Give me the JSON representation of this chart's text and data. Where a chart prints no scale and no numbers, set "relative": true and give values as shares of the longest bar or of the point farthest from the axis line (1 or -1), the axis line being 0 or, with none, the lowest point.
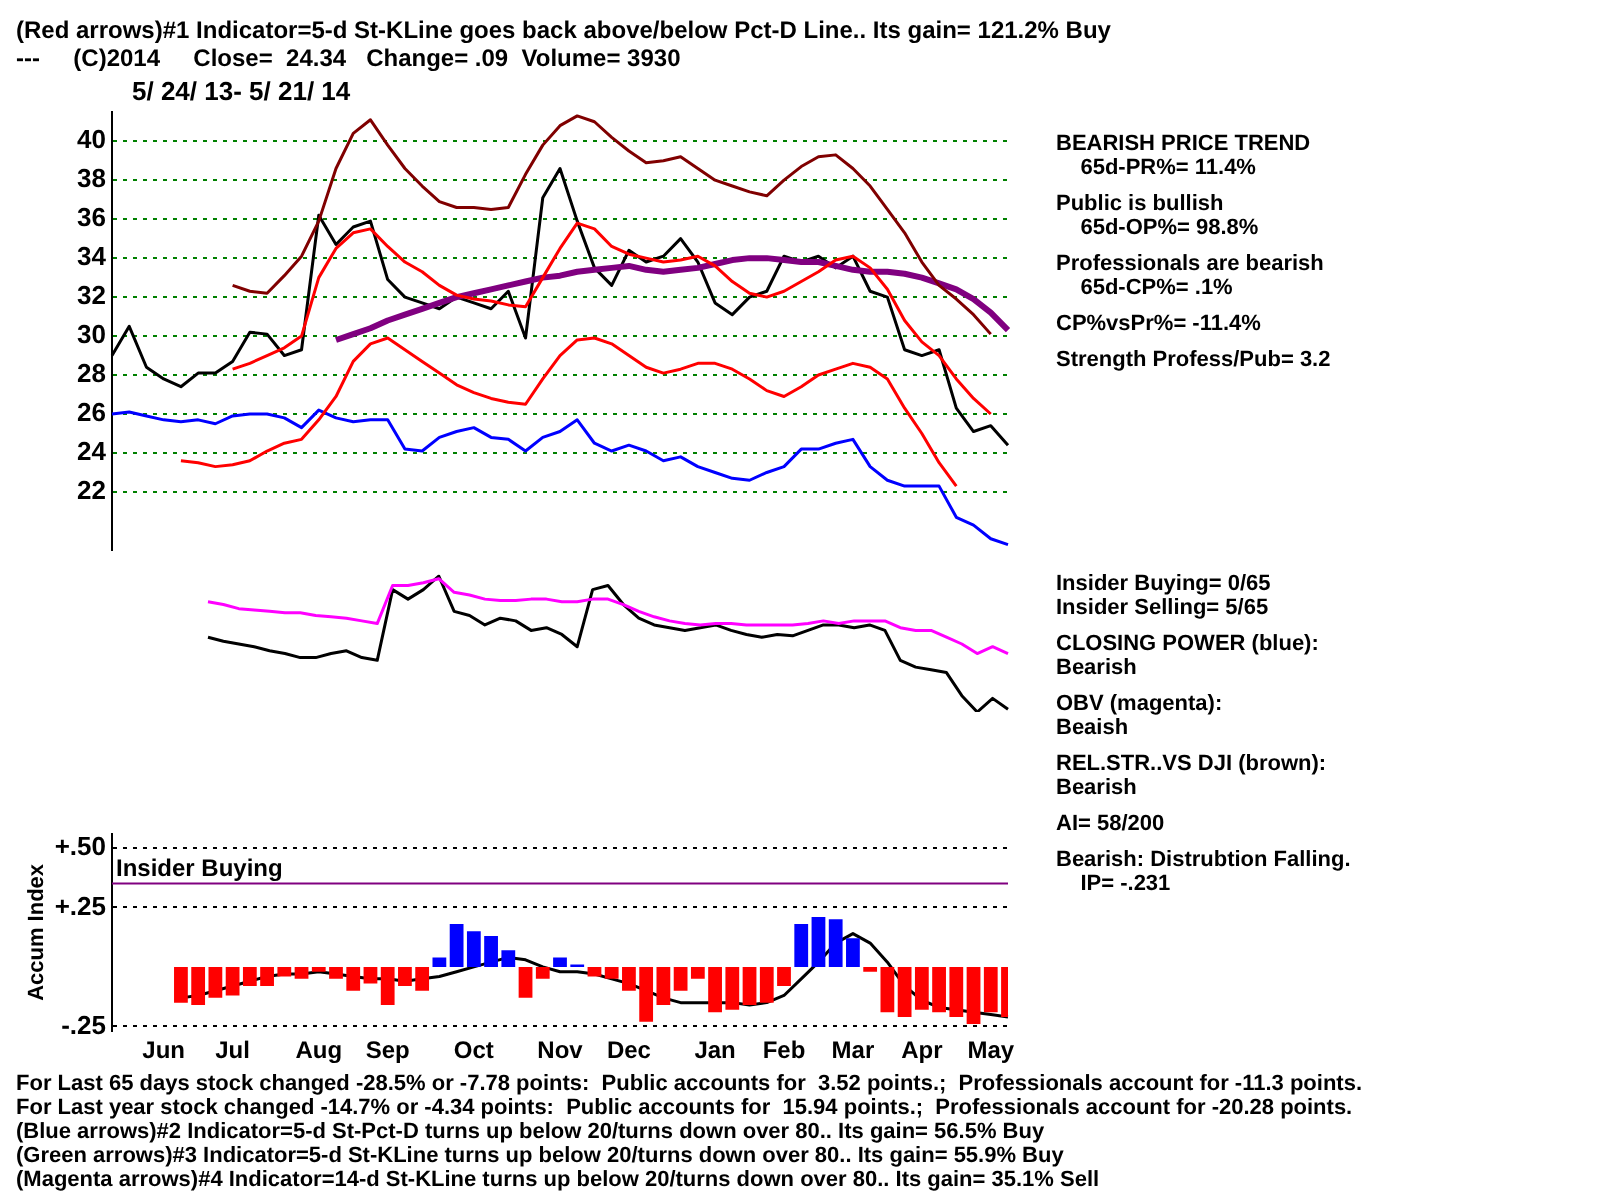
{
  "chart_data": [
    {
      "type": "line",
      "title": "(Red arrows)#1 Indicator=5-d St-KLine goes back above/below Pct-D Line.. Its gain= 121.2% Buy",
      "subtitle": "---     (C)2014     Close=  24.34   Change= .09  Volume= 3930",
      "categories": [
        null,
        null,
        null,
        null,
        null,
        null,
        null,
        null,
        null,
        null,
        null,
        null,
        null,
        null,
        null,
        null,
        null,
        null,
        null,
        null,
        null,
        null,
        null,
        null,
        null,
        null,
        null,
        null,
        null,
        null,
        null,
        null,
        null,
        null,
        null,
        null,
        null,
        null,
        null,
        null,
        null,
        null,
        null,
        null,
        null,
        null,
        null,
        null,
        null,
        null,
        null,
        null,
        null
      ],
      "series": [
        {
          "color": "#800000",
          "values": [
            null,
            null,
            null,
            null,
            null,
            null,
            null,
            32.6,
            32.3,
            32.2,
            33.1,
            34.1,
            35.9,
            38.6,
            40.4,
            41.1,
            39.8,
            38.6,
            37.7,
            36.9,
            36.6,
            36.6,
            36.5,
            36.6,
            38.3,
            39.8,
            40.8,
            41.3,
            41.0,
            40.2,
            39.5,
            38.9,
            39.0,
            39.2,
            38.6,
            38.0,
            37.7,
            37.4,
            37.2,
            38.0,
            38.7,
            39.2,
            39.3,
            38.6,
            37.7,
            36.5,
            35.3,
            33.8,
            32.6,
            31.9,
            31.1,
            30.1,
            null
          ]
        },
        {
          "color": "#ff0000",
          "values": [
            null,
            null,
            null,
            null,
            null,
            null,
            null,
            28.3,
            28.6,
            29.0,
            29.4,
            30.0,
            33.0,
            34.5,
            35.3,
            35.5,
            34.6,
            33.8,
            33.3,
            32.6,
            32.1,
            31.9,
            31.8,
            31.6,
            31.5,
            33.0,
            34.5,
            35.8,
            35.5,
            34.6,
            34.2,
            34.0,
            33.8,
            33.9,
            34.1,
            33.6,
            32.8,
            32.2,
            32.0,
            32.3,
            32.8,
            33.3,
            33.9,
            34.1,
            33.5,
            32.4,
            30.8,
            29.7,
            29.0,
            27.8,
            26.8,
            26.0,
            null
          ]
        },
        {
          "color": "#ff0000",
          "values": [
            null,
            null,
            null,
            null,
            23.6,
            23.5,
            23.3,
            23.4,
            23.6,
            24.1,
            24.5,
            24.7,
            25.7,
            26.9,
            28.7,
            29.6,
            29.9,
            29.3,
            28.7,
            28.1,
            27.5,
            27.1,
            26.8,
            26.6,
            26.5,
            27.8,
            29.0,
            29.8,
            29.9,
            29.6,
            29.0,
            28.4,
            28.1,
            28.3,
            28.6,
            28.6,
            28.3,
            27.8,
            27.2,
            26.9,
            27.4,
            28.0,
            28.3,
            28.6,
            28.4,
            27.8,
            26.3,
            25.0,
            23.5,
            22.3,
            null,
            null,
            null
          ]
        },
        {
          "color": "#800080",
          "values": [
            null,
            null,
            null,
            null,
            null,
            null,
            null,
            null,
            null,
            null,
            null,
            null,
            null,
            29.8,
            30.1,
            30.4,
            30.8,
            31.1,
            31.4,
            31.7,
            32.0,
            32.2,
            32.4,
            32.6,
            32.8,
            33.0,
            33.1,
            33.3,
            33.4,
            33.5,
            33.6,
            33.4,
            33.3,
            33.4,
            33.5,
            33.7,
            33.9,
            34.0,
            34.0,
            33.9,
            33.8,
            33.8,
            33.6,
            33.4,
            33.3,
            33.3,
            33.2,
            33.0,
            32.7,
            32.4,
            31.9,
            31.2,
            30.3
          ]
        },
        {
          "color": "#0000ff",
          "values": [
            26.0,
            26.1,
            25.9,
            25.7,
            25.6,
            25.7,
            25.5,
            25.9,
            26.0,
            26.0,
            25.8,
            25.3,
            26.2,
            25.8,
            25.6,
            25.7,
            25.7,
            24.2,
            24.1,
            24.8,
            25.1,
            25.3,
            24.8,
            24.7,
            24.1,
            24.8,
            25.1,
            25.7,
            24.5,
            24.1,
            24.4,
            24.1,
            23.6,
            23.8,
            23.3,
            23.0,
            22.7,
            22.6,
            23.0,
            23.3,
            24.2,
            24.2,
            24.5,
            24.7,
            23.3,
            22.6,
            22.3,
            22.3,
            22.3,
            20.7,
            20.3,
            19.6,
            19.3
          ]
        },
        {
          "color": "#000000",
          "values": [
            29.0,
            30.5,
            28.4,
            27.8,
            27.4,
            28.1,
            28.1,
            28.7,
            30.2,
            30.1,
            29.0,
            29.3,
            36.2,
            34.7,
            35.6,
            35.9,
            32.9,
            32.0,
            31.7,
            31.4,
            32.0,
            31.7,
            31.4,
            32.3,
            29.9,
            37.1,
            38.6,
            35.9,
            33.5,
            32.6,
            34.4,
            33.8,
            34.1,
            35.0,
            33.8,
            31.7,
            31.1,
            32.0,
            32.3,
            34.1,
            33.8,
            34.1,
            33.5,
            34.1,
            32.3,
            32.0,
            29.3,
            29.0,
            29.3,
            26.3,
            25.1,
            25.4,
            24.4
          ]
        }
      ],
      "ylim": [
        19,
        41.5
      ],
      "yticks": [
        22,
        24,
        26,
        28,
        30,
        32,
        34,
        36,
        38,
        40
      ],
      "grid": "y",
      "legend": false,
      "tick_labels": "y",
      "annotations": [
        "5/ 24/ 13- 5/ 21/ 14",
        "BEARISH PRICE TREND\n    65d-PR%= 11.4%",
        "Public is bullish\n    65d-OP%= 98.8%",
        "Professionals are bearish\n    65d-CP%= .1%",
        "CP%vsPr%= -11.4%",
        "Strength Profess/Pub= 3.2"
      ]
    },
    {
      "type": "line",
      "relative": true,
      "categories": [
        null,
        null,
        null,
        null,
        null,
        null,
        null,
        null,
        null,
        null,
        null,
        null,
        null,
        null,
        null,
        null,
        null,
        null,
        null,
        null,
        null,
        null,
        null,
        null,
        null,
        null,
        null,
        null,
        null,
        null,
        null,
        null,
        null,
        null,
        null,
        null,
        null,
        null,
        null,
        null,
        null,
        null,
        null,
        null,
        null,
        null,
        null,
        null,
        null,
        null,
        null,
        null,
        null
      ],
      "series": [
        {
          "color": "#ff00ff",
          "values": [
            0.81,
            0.79,
            0.76,
            0.75,
            0.74,
            0.73,
            0.73,
            0.71,
            0.7,
            0.69,
            0.67,
            0.65,
            0.93,
            0.93,
            0.95,
            0.98,
            0.88,
            0.86,
            0.83,
            0.82,
            0.82,
            0.83,
            0.83,
            0.81,
            0.81,
            0.83,
            0.83,
            0.79,
            0.74,
            0.7,
            0.67,
            0.65,
            0.64,
            0.65,
            0.65,
            0.64,
            0.64,
            0.64,
            0.64,
            0.65,
            0.67,
            0.65,
            0.67,
            0.67,
            0.67,
            0.62,
            0.6,
            0.6,
            0.55,
            0.5,
            0.43,
            0.48,
            0.43
          ]
        },
        {
          "color": "#000000",
          "values": [
            0.55,
            0.52,
            0.5,
            0.48,
            0.45,
            0.43,
            0.4,
            0.4,
            0.43,
            0.45,
            0.4,
            0.38,
            0.9,
            0.83,
            0.9,
            1.0,
            0.74,
            0.71,
            0.64,
            0.69,
            0.67,
            0.6,
            0.62,
            0.57,
            0.48,
            0.9,
            0.93,
            0.79,
            0.69,
            0.64,
            0.62,
            0.6,
            0.62,
            0.64,
            0.6,
            0.57,
            0.55,
            0.57,
            0.56,
            0.6,
            0.64,
            0.64,
            0.62,
            0.64,
            0.6,
            0.38,
            0.33,
            0.31,
            0.29,
            0.12,
            0,
            0.1,
            0.02
          ]
        }
      ],
      "legend": false,
      "tick_labels": false,
      "annotations": [
        "Insider Buying= 0/65\nInsider Selling= 5/65",
        "CLOSING POWER (blue):\nBearish",
        "OBV (magenta):\nBeaish",
        "REL.STR..VS DJI (brown):\nBearish"
      ]
    },
    {
      "type": "bar",
      "ylabel": "Accum Index",
      "categories": [
        null,
        null,
        null,
        "Jun",
        null,
        null,
        null,
        "Jul",
        null,
        null,
        null,
        null,
        "Aug",
        null,
        null,
        null,
        "Sep",
        null,
        null,
        null,
        null,
        "Oct",
        null,
        null,
        null,
        null,
        "Nov",
        null,
        null,
        null,
        "Dec",
        null,
        null,
        null,
        null,
        "Jan",
        null,
        null,
        null,
        "Feb",
        null,
        null,
        null,
        "Mar",
        null,
        null,
        null,
        "Apr",
        null,
        null,
        null,
        "May",
        null
      ],
      "series": [
        {
          "type": "bar",
          "values": [
            null,
            null,
            null,
            null,
            -0.15,
            -0.16,
            -0.13,
            -0.12,
            -0.08,
            -0.08,
            -0.04,
            -0.05,
            -0.02,
            -0.05,
            -0.1,
            -0.07,
            -0.16,
            -0.08,
            -0.1,
            0.04,
            0.18,
            0.15,
            0.13,
            0.07,
            -0.13,
            -0.05,
            0.04,
            0.01,
            -0.04,
            -0.05,
            -0.1,
            -0.23,
            -0.16,
            -0.1,
            -0.05,
            -0.19,
            -0.18,
            -0.16,
            -0.15,
            -0.08,
            0.18,
            0.21,
            0.2,
            0.12,
            -0.02,
            -0.19,
            -0.21,
            -0.18,
            -0.19,
            -0.21,
            -0.24,
            -0.19,
            -0.21
          ],
          "colors": [
            "#ff0000",
            "#ff0000",
            "#ff0000",
            "#ff0000",
            "#ff0000",
            "#ff0000",
            "#ff0000",
            "#ff0000",
            "#ff0000",
            "#ff0000",
            "#ff0000",
            "#ff0000",
            "#ff0000",
            "#ff0000",
            "#ff0000",
            "#ff0000",
            "#ff0000",
            "#ff0000",
            "#ff0000",
            "#0000ff",
            "#0000ff",
            "#0000ff",
            "#0000ff",
            "#0000ff",
            "#ff0000",
            "#ff0000",
            "#0000ff",
            "#0000ff",
            "#ff0000",
            "#ff0000",
            "#ff0000",
            "#ff0000",
            "#ff0000",
            "#ff0000",
            "#ff0000",
            "#ff0000",
            "#ff0000",
            "#ff0000",
            "#ff0000",
            "#ff0000",
            "#0000ff",
            "#0000ff",
            "#0000ff",
            "#0000ff",
            "#ff0000",
            "#ff0000",
            "#ff0000",
            "#ff0000",
            "#ff0000",
            "#ff0000",
            "#ff0000",
            "#ff0000",
            "#ff0000"
          ]
        },
        {
          "type": "line",
          "color": "#000000",
          "values": [
            null,
            null,
            null,
            null,
            -0.13,
            -0.12,
            -0.1,
            -0.08,
            -0.06,
            -0.04,
            -0.03,
            -0.03,
            -0.02,
            -0.03,
            -0.04,
            -0.05,
            -0.05,
            -0.06,
            -0.05,
            -0.04,
            -0.02,
            0.0,
            0.02,
            0.04,
            0.03,
            0.0,
            -0.02,
            -0.02,
            -0.03,
            -0.05,
            -0.07,
            -0.1,
            -0.13,
            -0.15,
            -0.15,
            -0.15,
            -0.15,
            -0.16,
            -0.15,
            -0.12,
            -0.05,
            0.02,
            0.1,
            0.14,
            0.1,
            0.02,
            -0.08,
            -0.14,
            -0.17,
            -0.18,
            -0.19,
            -0.2,
            -0.21
          ]
        }
      ],
      "ylim": [
        -0.27,
        0.56
      ],
      "yticks": [
        {
          "value": 0.5,
          "label": "+.50"
        },
        {
          "value": 0.25,
          "label": "+.25"
        },
        {
          "value": -0.25,
          "label": "-.25"
        }
      ],
      "grid": "y",
      "legend": false,
      "ref_lines": [
        {
          "axis": "y",
          "value": 0.35,
          "label": "Insider Buying",
          "color": "#800080"
        }
      ],
      "annotations": [
        "AI= 58/200",
        "Bearish: Distrubtion Falling.\n    IP= -.231",
        "For Last 65 days stock changed -28.5% or -7.78 points:  Public accounts for  3.52 points.;  Professionals account for -11.3 points.",
        "For Last year stock changed -14.7% or -4.34 points:  Public accounts for  15.94 points.;  Professionals account for -20.28 points.",
        "(Blue arrows)#2 Indicator=5-d St-Pct-D turns up below 20/turns down over 80.. Its gain= 56.5% Buy",
        "(Green arrows)#3 Indicator=5-d St-KLine turns up below 20/turns down over 80.. Its gain= 55.9% Buy",
        "(Magenta arrows)#4 Indicator=14-d St-KLine turns up below 20/turns down over 80.. Its gain= 35.1% Sell"
      ]
    }
  ]
}
